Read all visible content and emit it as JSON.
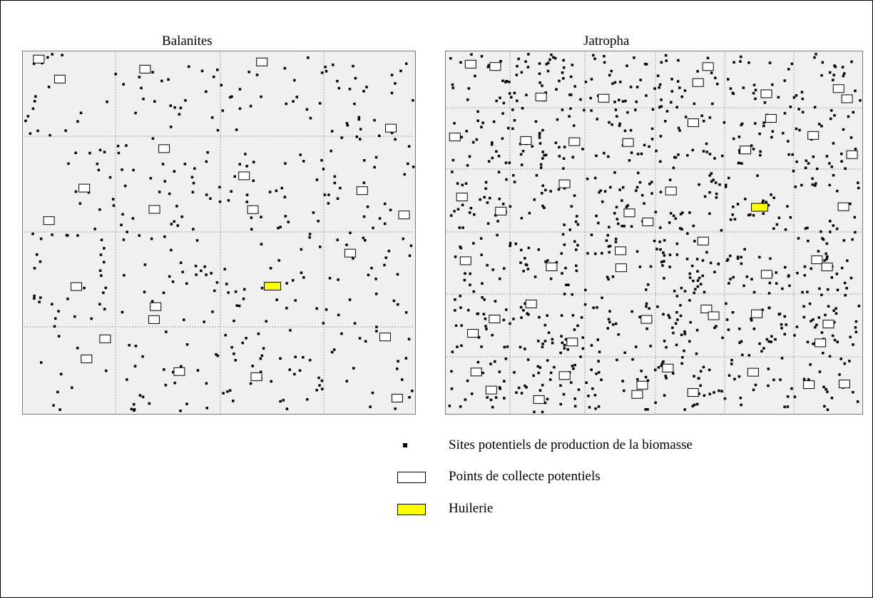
{
  "panels": [
    {
      "title": "Balanites",
      "plant": {
        "col": 2,
        "row": 2
      }
    },
    {
      "title": "Jatropha",
      "plant": {
        "col": 4,
        "row": 2
      }
    }
  ],
  "legend": {
    "items": [
      {
        "symbol": "square-dot",
        "label": "Sites potentiels de production de la biomasse"
      },
      {
        "symbol": "white-rectangle",
        "label": "Points de collecte potentiels"
      },
      {
        "symbol": "yellow-rectangle",
        "label": "Huilerie"
      }
    ]
  },
  "colors": {
    "background": "#ffffff",
    "map_background": "#f0f0f0",
    "grid_line": "#a0a0a0",
    "site_marker": "#000000",
    "collection_point_fill": "#ffffff",
    "oil_mill_fill": "#ffff00"
  }
}
